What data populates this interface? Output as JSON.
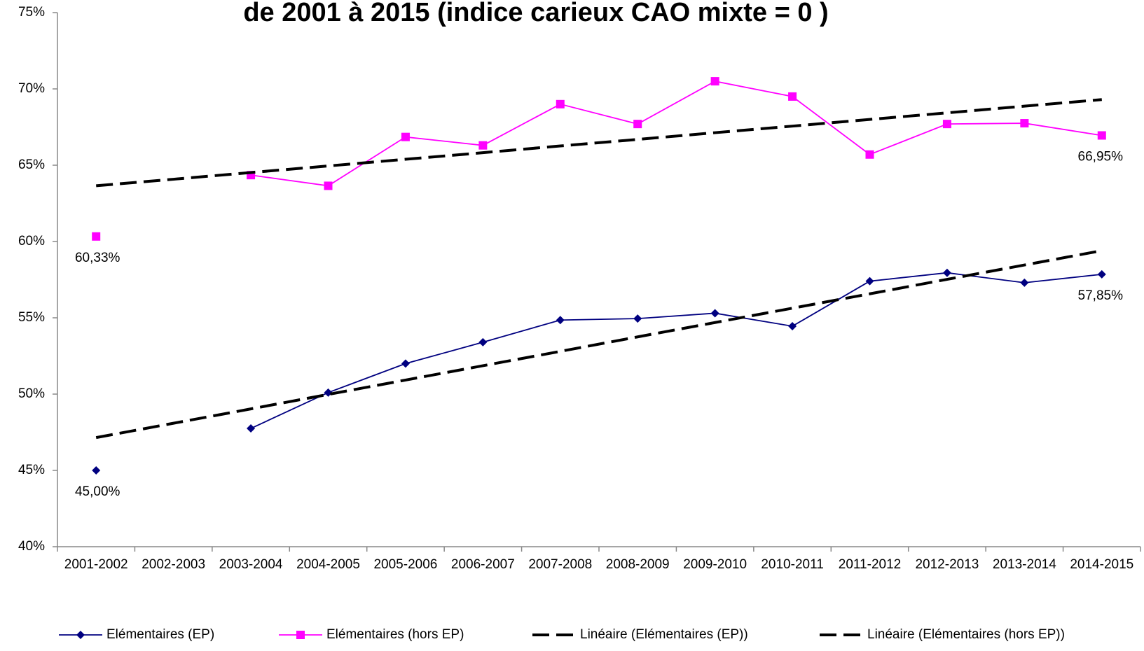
{
  "chart_data": {
    "type": "line",
    "title": "de 2001 à 2015 (indice carieux CAO mixte  = 0 )",
    "categories": [
      "2001-2002",
      "2002-2003",
      "2003-2004",
      "2004-2005",
      "2005-2006",
      "2006-2007",
      "2007-2008",
      "2008-2009",
      "2009-2010",
      "2010-2011",
      "2011-2012",
      "2012-2013",
      "2013-2014",
      "2014-2015"
    ],
    "ylim": [
      40,
      75
    ],
    "yticks": [
      {
        "value": 40,
        "label": "40%"
      },
      {
        "value": 45,
        "label": "45%"
      },
      {
        "value": 50,
        "label": "50%"
      },
      {
        "value": 55,
        "label": "55%"
      },
      {
        "value": 60,
        "label": "60%"
      },
      {
        "value": 65,
        "label": "65%"
      },
      {
        "value": 70,
        "label": "70%"
      },
      {
        "value": 75,
        "label": "75%"
      }
    ],
    "grid": false,
    "legend": "bottom",
    "series": [
      {
        "name": "Elémentaires (EP)",
        "color": "#000080",
        "marker": "diamond",
        "values": [
          45.0,
          null,
          47.75,
          50.1,
          52.0,
          53.4,
          54.85,
          54.95,
          55.3,
          54.45,
          57.4,
          57.95,
          57.3,
          57.85
        ],
        "value_labels": [
          "45,00%",
          null,
          null,
          null,
          null,
          null,
          null,
          null,
          null,
          null,
          null,
          null,
          null,
          "57,85%"
        ]
      },
      {
        "name": "Elémentaires (hors EP)",
        "color": "#ff00ff",
        "marker": "square",
        "values": [
          60.33,
          null,
          64.35,
          63.65,
          66.85,
          66.3,
          69.0,
          67.7,
          70.5,
          69.5,
          65.7,
          67.7,
          67.75,
          66.95
        ],
        "value_labels": [
          "60,33%",
          null,
          null,
          null,
          null,
          null,
          null,
          null,
          null,
          null,
          null,
          null,
          null,
          "66,95%"
        ]
      },
      {
        "name": "Linéaire (Elémentaires (EP))",
        "color": "#000000",
        "dashed": true,
        "values": [
          47.15,
          48.09,
          49.03,
          49.98,
          50.92,
          51.86,
          52.8,
          53.75,
          54.69,
          55.63,
          56.57,
          57.52,
          58.46,
          59.4
        ]
      },
      {
        "name": "Linéaire (Elémentaires (hors EP))",
        "color": "#000000",
        "dashed": true,
        "values": [
          63.65,
          64.08,
          64.52,
          64.95,
          65.39,
          65.82,
          66.26,
          66.69,
          67.13,
          67.56,
          68.0,
          68.43,
          68.87,
          69.3
        ]
      }
    ]
  }
}
